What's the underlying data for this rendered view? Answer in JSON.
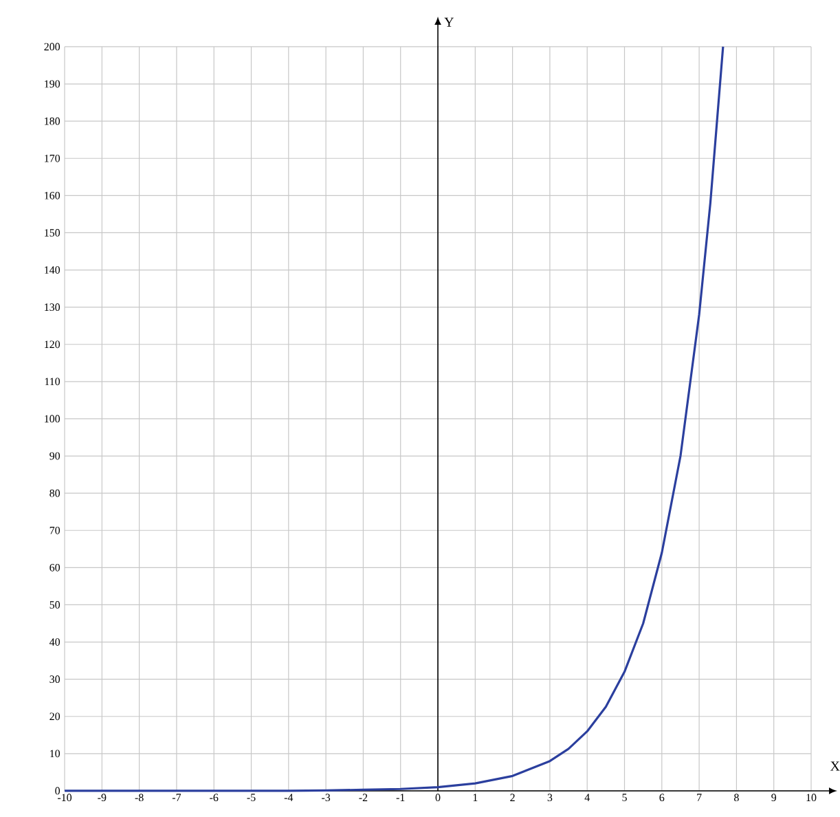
{
  "chart_data": {
    "type": "line",
    "xlabel": "X",
    "ylabel": "Y",
    "x": [
      -10,
      -9,
      -8,
      -7,
      -6,
      -5,
      -4,
      -3,
      -2,
      -1,
      0,
      1,
      2,
      3,
      3.5,
      4,
      4.5,
      5,
      5.5,
      6,
      6.5,
      7,
      7.3,
      7.64
    ],
    "series": [
      {
        "color": "#2b3f9e",
        "values": [
          0,
          0,
          0,
          0,
          0,
          0,
          0,
          0.1,
          0.3,
          0.5,
          1,
          2,
          4,
          8,
          11.3,
          16,
          22.6,
          32,
          45,
          64,
          90,
          128,
          158,
          200
        ]
      }
    ],
    "xlim": [
      -10,
      10
    ],
    "ylim": [
      0,
      200
    ],
    "xticks": [
      -10,
      -9,
      -8,
      -7,
      -6,
      -5,
      -4,
      -3,
      -2,
      -1,
      0,
      1,
      2,
      3,
      4,
      5,
      6,
      7,
      8,
      9,
      10
    ],
    "yticks": [
      0,
      10,
      20,
      30,
      40,
      50,
      60,
      70,
      80,
      90,
      100,
      110,
      120,
      130,
      140,
      150,
      160,
      170,
      180,
      190,
      200
    ],
    "grid": true
  }
}
